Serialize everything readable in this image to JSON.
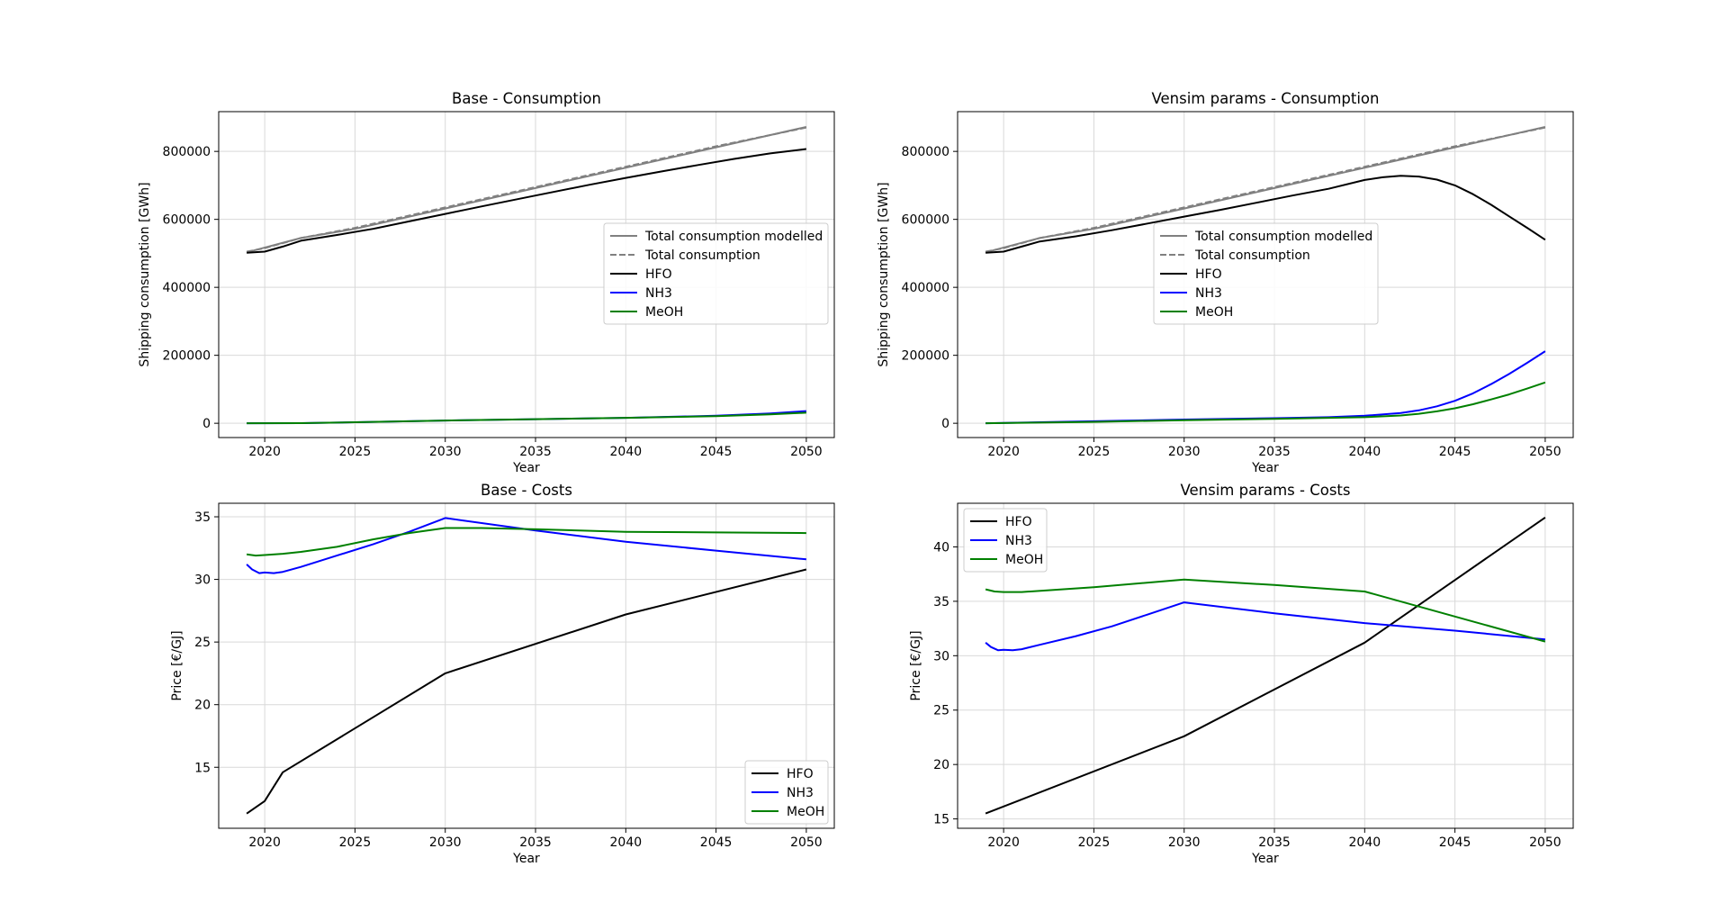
{
  "chart_data": [
    {
      "type": "line",
      "title": "Base - Consumption",
      "xlabel": "Year",
      "ylabel": "Shipping consumption [GWh]",
      "xlim": [
        2017.45,
        2051.55
      ],
      "ylim": [
        -42000,
        917000
      ],
      "xticks": [
        2020,
        2025,
        2030,
        2035,
        2040,
        2045,
        2050
      ],
      "xtick_labels": [
        "2020",
        "2025",
        "2030",
        "2035",
        "2040",
        "2045",
        "2050"
      ],
      "yticks": [
        0,
        200000,
        400000,
        600000,
        800000
      ],
      "ytick_labels": [
        "0",
        "200000",
        "400000",
        "600000",
        "800000"
      ],
      "grid": true,
      "legend_position": "center-right",
      "series": [
        {
          "name": "Total consumption modelled",
          "color": "#808080",
          "dash": "solid",
          "x": [
            2019,
            2022,
            2025,
            2030,
            2035,
            2040,
            2045,
            2050
          ],
          "y": [
            503000,
            545000,
            572000,
            632000,
            692000,
            752000,
            812000,
            872000
          ]
        },
        {
          "name": "Total consumption",
          "color": "#808080",
          "dash": "dashed",
          "x": [
            2019,
            2020,
            2022,
            2025,
            2030,
            2035,
            2040,
            2045,
            2050
          ],
          "y": [
            505000,
            515000,
            545000,
            575000,
            635000,
            695000,
            755000,
            815000,
            870000
          ]
        },
        {
          "name": "HFO",
          "color": "#000000",
          "dash": "solid",
          "x": [
            2019,
            2020,
            2021,
            2022,
            2024,
            2026,
            2028,
            2030,
            2032,
            2035,
            2038,
            2040,
            2042,
            2044,
            2046,
            2048,
            2050
          ],
          "y": [
            502000,
            505000,
            520000,
            537000,
            554000,
            572000,
            594000,
            616000,
            638000,
            670000,
            702000,
            722000,
            741000,
            760000,
            778000,
            794000,
            807000
          ]
        },
        {
          "name": "NH3",
          "color": "#0000ff",
          "dash": "solid",
          "x": [
            2019,
            2022,
            2025,
            2030,
            2035,
            2040,
            2045,
            2048,
            2050
          ],
          "y": [
            0,
            500,
            3000,
            8000,
            12000,
            16000,
            22000,
            29000,
            36000
          ]
        },
        {
          "name": "MeOH",
          "color": "#008000",
          "dash": "solid",
          "x": [
            2019,
            2022,
            2025,
            2030,
            2035,
            2040,
            2045,
            2048,
            2050
          ],
          "y": [
            0,
            500,
            3000,
            8000,
            12000,
            16000,
            21000,
            26000,
            31000
          ]
        }
      ]
    },
    {
      "type": "line",
      "title": "Vensim params - Consumption",
      "xlabel": "Year",
      "ylabel": "Shipping consumption [GWh]",
      "xlim": [
        2017.45,
        2051.55
      ],
      "ylim": [
        -42000,
        917000
      ],
      "xticks": [
        2020,
        2025,
        2030,
        2035,
        2040,
        2045,
        2050
      ],
      "xtick_labels": [
        "2020",
        "2025",
        "2030",
        "2035",
        "2040",
        "2045",
        "2050"
      ],
      "yticks": [
        0,
        200000,
        400000,
        600000,
        800000
      ],
      "ytick_labels": [
        "0",
        "200000",
        "400000",
        "600000",
        "800000"
      ],
      "grid": true,
      "legend_position": "center",
      "series": [
        {
          "name": "Total consumption modelled",
          "color": "#808080",
          "dash": "solid",
          "x": [
            2019,
            2022,
            2025,
            2030,
            2035,
            2040,
            2045,
            2050
          ],
          "y": [
            503000,
            545000,
            572000,
            632000,
            692000,
            752000,
            812000,
            872000
          ]
        },
        {
          "name": "Total consumption",
          "color": "#808080",
          "dash": "dashed",
          "x": [
            2019,
            2020,
            2022,
            2025,
            2030,
            2035,
            2040,
            2045,
            2050
          ],
          "y": [
            505000,
            515000,
            545000,
            575000,
            635000,
            695000,
            755000,
            815000,
            870000
          ]
        },
        {
          "name": "HFO",
          "color": "#000000",
          "dash": "solid",
          "x": [
            2019,
            2020,
            2021,
            2022,
            2024,
            2026,
            2028,
            2030,
            2032,
            2034,
            2036,
            2038,
            2040,
            2041,
            2042,
            2043,
            2044,
            2045,
            2046,
            2047,
            2048,
            2049,
            2050
          ],
          "y": [
            502000,
            505000,
            520000,
            535000,
            550000,
            568000,
            588000,
            608000,
            628000,
            649000,
            670000,
            690000,
            716000,
            724000,
            728000,
            726000,
            717000,
            700000,
            674000,
            643000,
            609000,
            575000,
            540000
          ]
        },
        {
          "name": "NH3",
          "color": "#0000ff",
          "dash": "solid",
          "x": [
            2019,
            2022,
            2025,
            2030,
            2035,
            2038,
            2040,
            2042,
            2043,
            2044,
            2045,
            2046,
            2047,
            2048,
            2049,
            2050
          ],
          "y": [
            0,
            3000,
            6000,
            11000,
            15000,
            18000,
            22000,
            30000,
            38000,
            50000,
            66000,
            88000,
            115000,
            145000,
            178000,
            212000
          ]
        },
        {
          "name": "MeOH",
          "color": "#008000",
          "dash": "solid",
          "x": [
            2019,
            2022,
            2025,
            2030,
            2035,
            2038,
            2040,
            2042,
            2043,
            2044,
            2045,
            2046,
            2047,
            2048,
            2049,
            2050
          ],
          "y": [
            0,
            2000,
            4000,
            9000,
            13000,
            16000,
            18000,
            23000,
            28000,
            35000,
            44000,
            56000,
            70000,
            85000,
            102000,
            120000
          ]
        }
      ]
    },
    {
      "type": "line",
      "title": "Base - Costs",
      "xlabel": "Year",
      "ylabel": "Price [€/GJ]",
      "xlim": [
        2017.45,
        2051.55
      ],
      "ylim": [
        10.13,
        36.08
      ],
      "xticks": [
        2020,
        2025,
        2030,
        2035,
        2040,
        2045,
        2050
      ],
      "xtick_labels": [
        "2020",
        "2025",
        "2030",
        "2035",
        "2040",
        "2045",
        "2050"
      ],
      "yticks": [
        15,
        20,
        25,
        30,
        35
      ],
      "ytick_labels": [
        "15",
        "20",
        "25",
        "30",
        "35"
      ],
      "grid": true,
      "legend_position": "lower right",
      "series": [
        {
          "name": "HFO",
          "color": "#000000",
          "dash": "solid",
          "x": [
            2019,
            2020,
            2021,
            2030,
            2040,
            2050
          ],
          "y": [
            11.3,
            12.3,
            14.6,
            22.5,
            27.2,
            30.8
          ]
        },
        {
          "name": "NH3",
          "color": "#0000ff",
          "dash": "solid",
          "x": [
            2019,
            2019.3,
            2019.7,
            2020,
            2020.5,
            2021,
            2022,
            2024,
            2026,
            2028,
            2030,
            2035,
            2040,
            2045,
            2050
          ],
          "y": [
            31.2,
            30.8,
            30.5,
            30.55,
            30.5,
            30.6,
            31.0,
            31.9,
            32.8,
            33.8,
            34.9,
            33.9,
            33.0,
            32.3,
            31.6
          ]
        },
        {
          "name": "MeOH",
          "color": "#008000",
          "dash": "solid",
          "x": [
            2019,
            2019.5,
            2020,
            2021,
            2022,
            2024,
            2026,
            2028,
            2030,
            2032,
            2035,
            2040,
            2045,
            2050
          ],
          "y": [
            32.0,
            31.9,
            31.95,
            32.05,
            32.2,
            32.6,
            33.2,
            33.7,
            34.1,
            34.1,
            34.0,
            33.8,
            33.75,
            33.7
          ]
        }
      ]
    },
    {
      "type": "line",
      "title": "Vensim params - Costs",
      "xlabel": "Year",
      "ylabel": "Price [€/GJ]",
      "xlim": [
        2017.45,
        2051.55
      ],
      "ylim": [
        14.14,
        44.01
      ],
      "xticks": [
        2020,
        2025,
        2030,
        2035,
        2040,
        2045,
        2050
      ],
      "xtick_labels": [
        "2020",
        "2025",
        "2030",
        "2035",
        "2040",
        "2045",
        "2050"
      ],
      "yticks": [
        15,
        20,
        25,
        30,
        35,
        40
      ],
      "ytick_labels": [
        "15",
        "20",
        "25",
        "30",
        "35",
        "40"
      ],
      "grid": true,
      "legend_position": "upper left",
      "series": [
        {
          "name": "HFO",
          "color": "#000000",
          "dash": "solid",
          "x": [
            2019,
            2030,
            2040,
            2050
          ],
          "y": [
            15.5,
            22.6,
            31.2,
            42.7
          ]
        },
        {
          "name": "NH3",
          "color": "#0000ff",
          "dash": "solid",
          "x": [
            2019,
            2019.3,
            2019.7,
            2020,
            2020.5,
            2021,
            2022,
            2024,
            2026,
            2028,
            2030,
            2035,
            2040,
            2045,
            2050
          ],
          "y": [
            31.2,
            30.8,
            30.5,
            30.55,
            30.5,
            30.6,
            31.0,
            31.8,
            32.7,
            33.8,
            34.9,
            33.9,
            33.0,
            32.3,
            31.5
          ]
        },
        {
          "name": "MeOH",
          "color": "#008000",
          "dash": "solid",
          "x": [
            2019,
            2019.5,
            2020,
            2021,
            2025,
            2030,
            2035,
            2040,
            2045,
            2050
          ],
          "y": [
            36.1,
            35.9,
            35.85,
            35.85,
            36.3,
            37.0,
            36.5,
            35.9,
            33.6,
            31.3
          ]
        }
      ]
    }
  ]
}
